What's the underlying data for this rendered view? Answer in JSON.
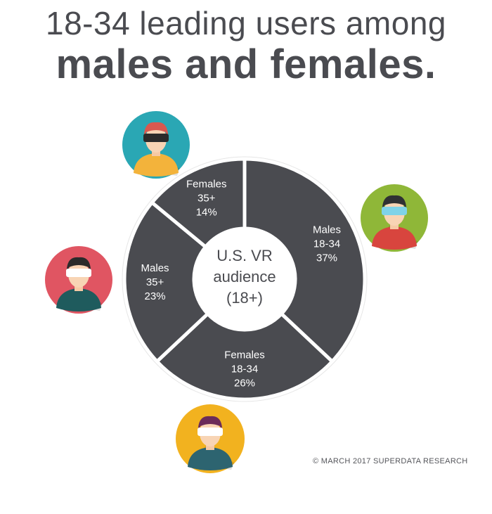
{
  "title": {
    "line1": "18-34 leading users among",
    "line2": "males and females."
  },
  "chart_data": {
    "type": "pie",
    "style": "donut",
    "center_label": [
      "U.S. VR",
      "audience",
      "(18+)"
    ],
    "slices": [
      {
        "label": [
          "Males",
          "18-34"
        ],
        "value": 37,
        "display": "37%"
      },
      {
        "label": [
          "Females",
          "18-34"
        ],
        "value": 26,
        "display": "26%"
      },
      {
        "label": [
          "Males",
          "35+"
        ],
        "value": 23,
        "display": "23%"
      },
      {
        "label": [
          "Females",
          "35+"
        ],
        "value": 14,
        "display": "14%"
      }
    ],
    "colors": {
      "slice": "#4a4b50",
      "slice_text": "#ffffff",
      "center_text": "#4a4b50"
    }
  },
  "avatars": [
    {
      "name": "female-35plus-avatar-icon",
      "bg": "#2aa7b4",
      "shirt": "#f3b33b",
      "hair": "#d9584f",
      "headset": "#2b2b2b"
    },
    {
      "name": "male-18-34-avatar-icon",
      "bg": "#8fb738",
      "shirt": "#d8453e",
      "hair": "#2f3133",
      "headset": "#7fd3e8"
    },
    {
      "name": "male-35plus-avatar-icon",
      "bg": "#e05562",
      "shirt": "#1f5b5d",
      "hair": "#2b2b2b",
      "headset": "#ffffff"
    },
    {
      "name": "female-18-34-avatar-icon",
      "bg": "#f2b21f",
      "shirt": "#2d6470",
      "hair": "#6b2b59",
      "headset": "#ffffff"
    }
  ],
  "credit": "© MARCH 2017 SUPERDATA RESEARCH"
}
